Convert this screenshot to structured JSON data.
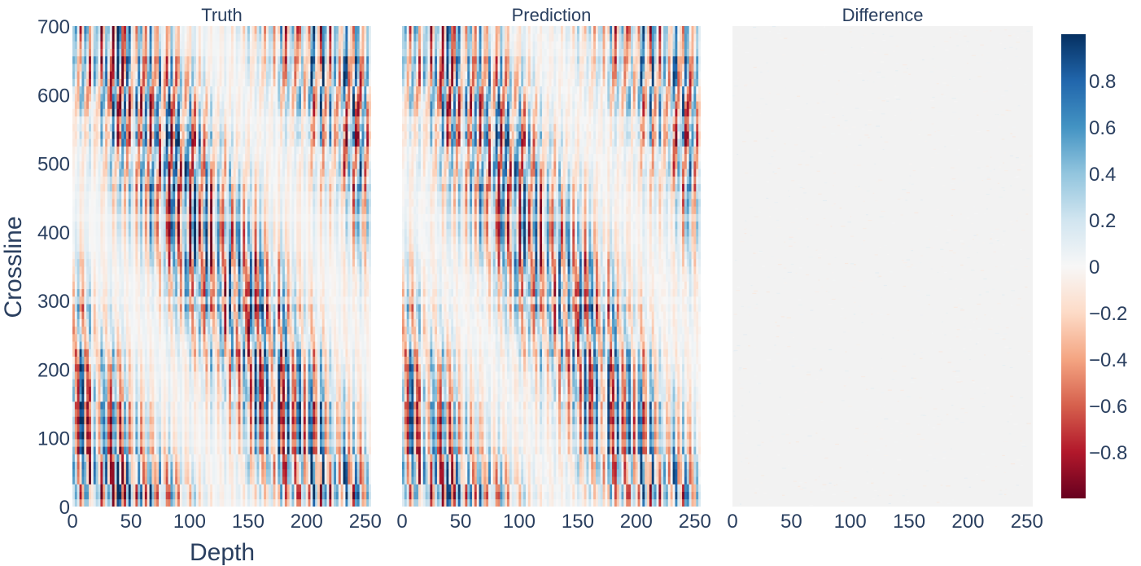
{
  "chart_data": {
    "type": "heatmap",
    "layout": "three side-by-side heatmap panels sharing one colorbar",
    "colorscale": "RdBu",
    "colorscale_colors": [
      "#67001f",
      "#b2182b",
      "#d6604d",
      "#f4a582",
      "#fddbc7",
      "#f7f7f7",
      "#d1e5f0",
      "#92c5de",
      "#4393c3",
      "#2166ac",
      "#053061"
    ],
    "zmin": -1,
    "zmax": 1,
    "xlabel": "Depth",
    "ylabel": "Crossline",
    "xlim": [
      0,
      255
    ],
    "ylim": [
      0,
      700
    ],
    "xticks": [
      0,
      50,
      100,
      150,
      200,
      250
    ],
    "yticks": [
      0,
      100,
      200,
      300,
      400,
      500,
      600,
      700
    ],
    "colorbar_ticks": [
      0.8,
      0.6,
      0.4,
      0.2,
      0,
      -0.2,
      -0.4,
      -0.6,
      -0.8
    ],
    "colorbar_tick_labels": [
      "0.8",
      "0.6",
      "0.4",
      "0.2",
      "0",
      "−0.2",
      "−0.4",
      "−0.6",
      "−0.8"
    ],
    "panels": [
      {
        "title": "Truth",
        "content": "seismic amplitude section, values spanning about -1 to 1"
      },
      {
        "title": "Prediction",
        "content": "seismic amplitude section nearly identical to Truth"
      },
      {
        "title": "Difference",
        "content": "residual Prediction minus Truth, values near 0"
      }
    ]
  }
}
